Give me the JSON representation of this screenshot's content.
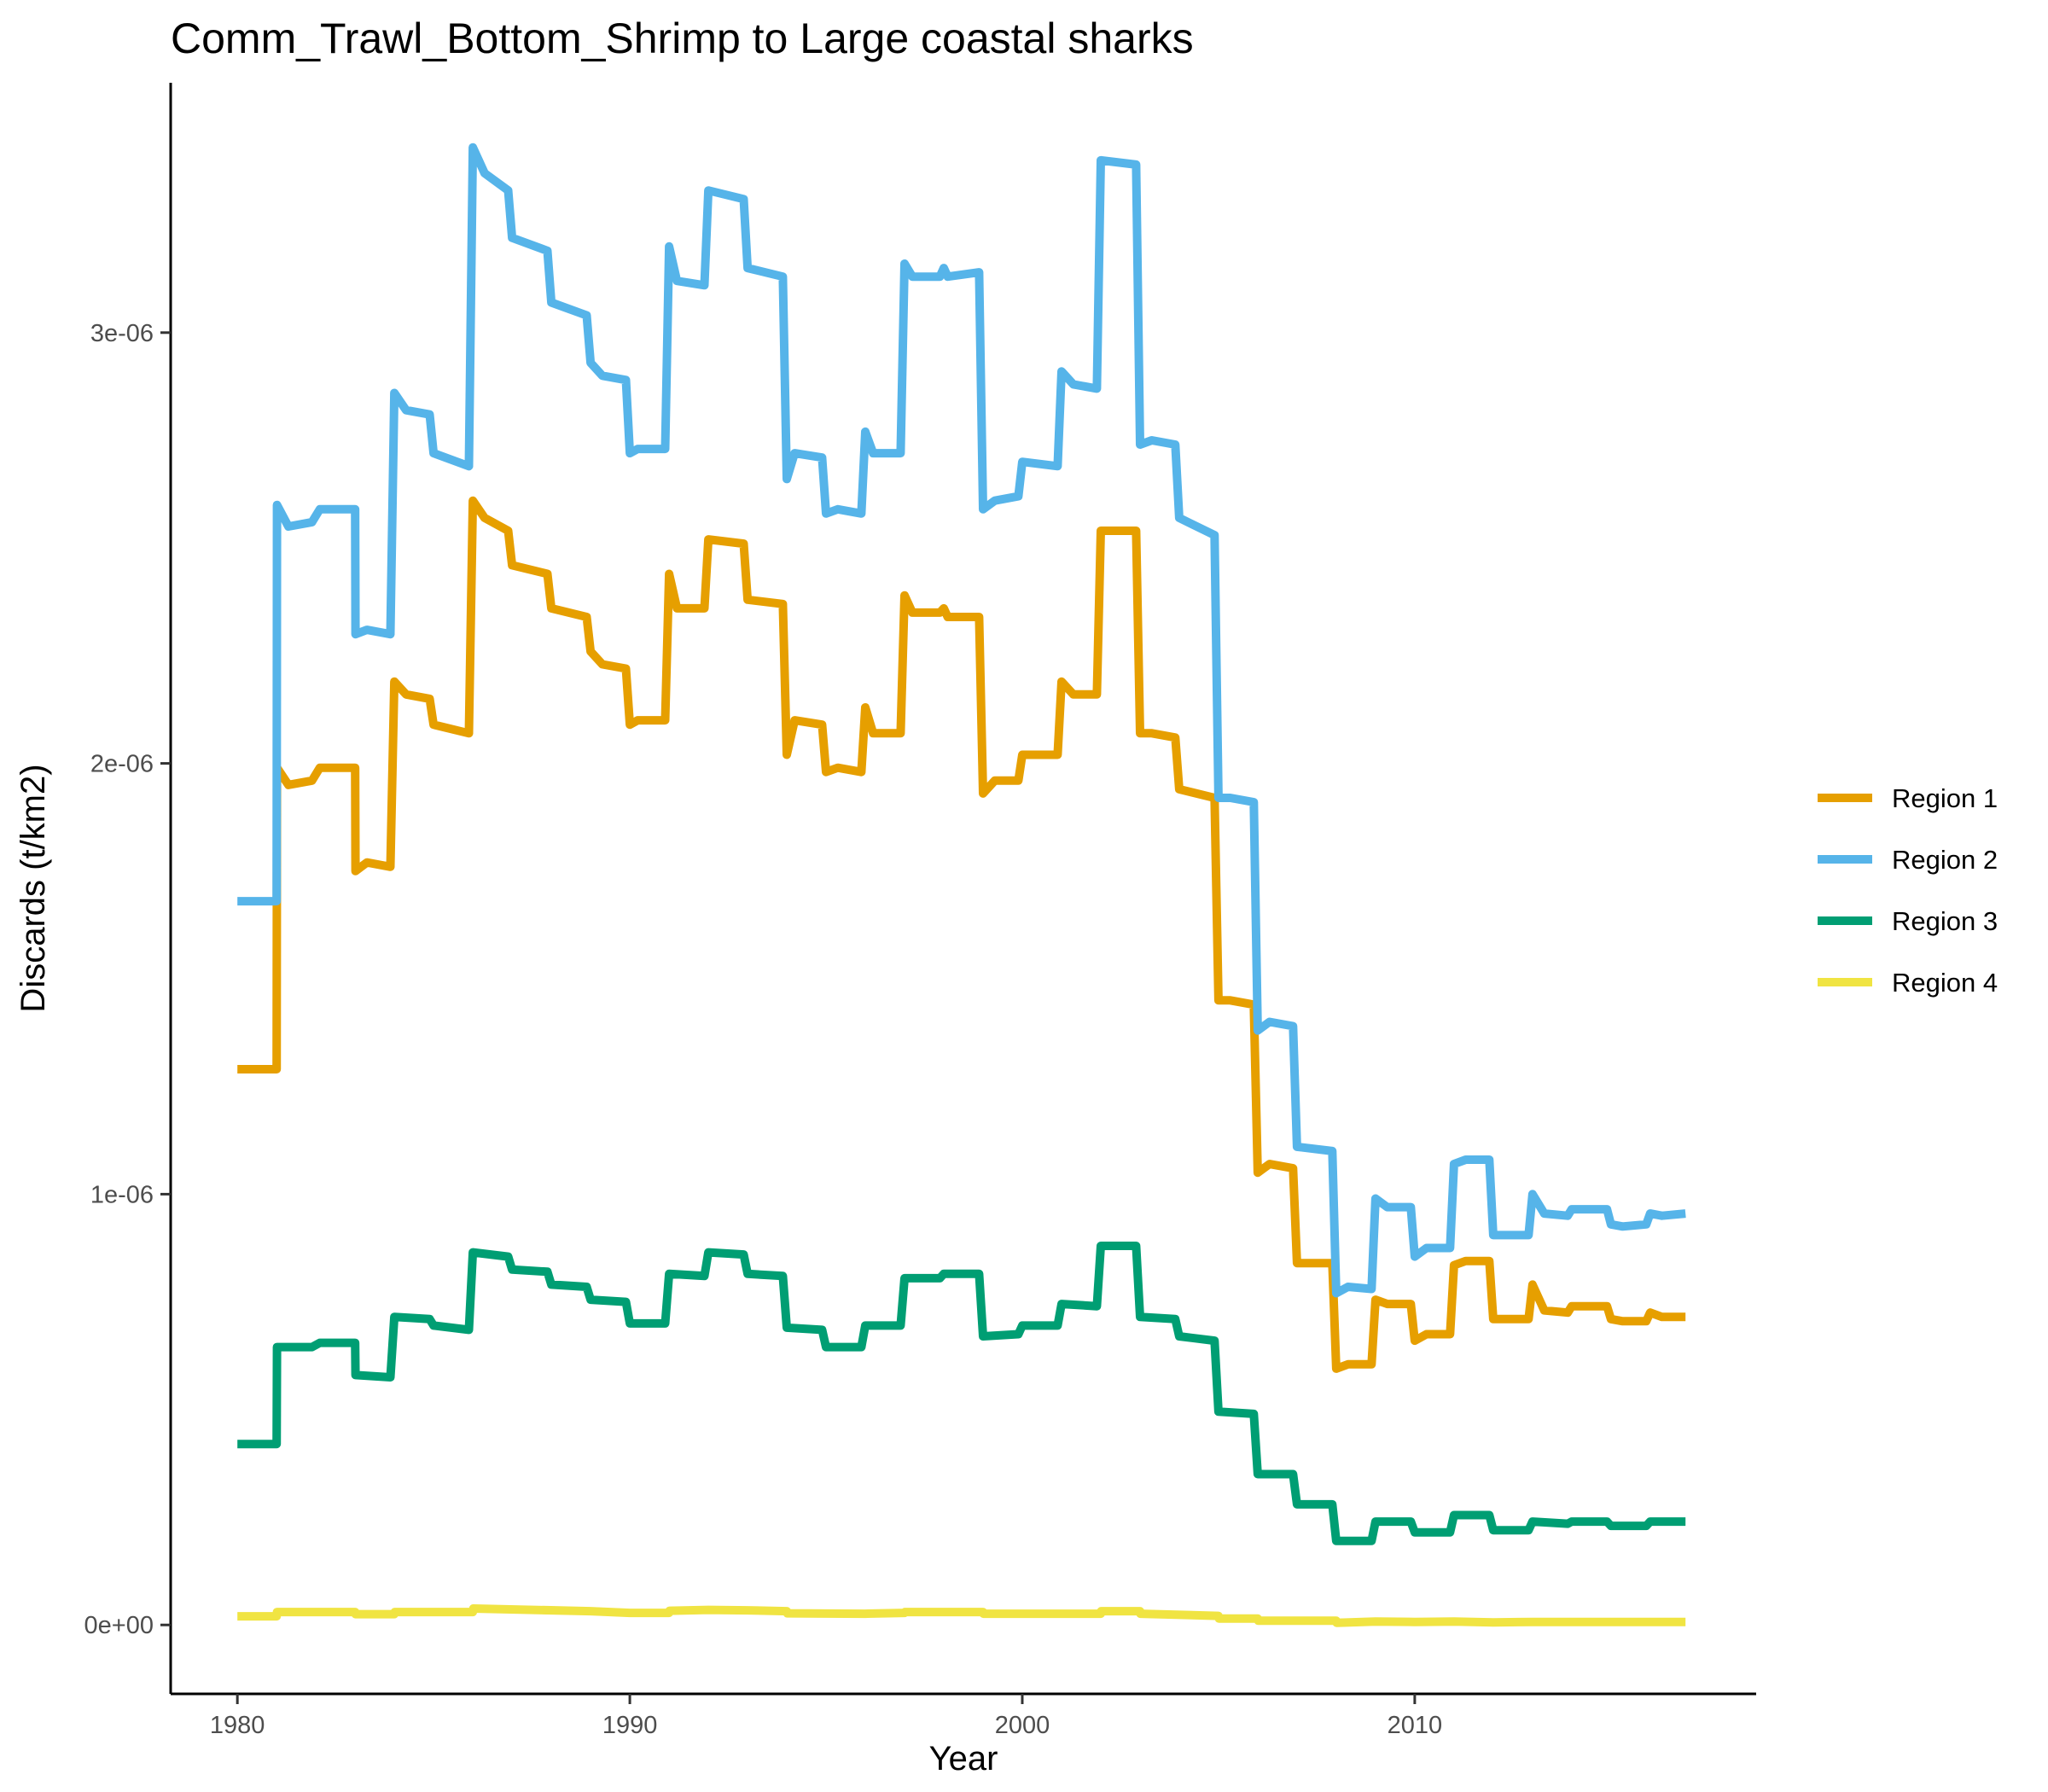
{
  "chart_data": {
    "type": "line",
    "title": "Comm_Trawl_Bottom_Shrimp to Large coastal sharks",
    "xlabel": "Year",
    "ylabel": "Discards (t/km2)",
    "xlim": [
      1978.3,
      2018.7
    ],
    "ylim": [
      -1.6e-07,
      3.58e-06
    ],
    "x_ticks": [
      1980,
      1990,
      2000,
      2010
    ],
    "x_tick_labels": [
      "1980",
      "1990",
      "2000",
      "2010"
    ],
    "y_ticks": [
      0,
      1e-06,
      2e-06,
      3e-06
    ],
    "y_tick_labels": [
      "0e+00",
      "1e-06",
      "2e-06",
      "3e-06"
    ],
    "grid": false,
    "legend_position": "right",
    "series": [
      {
        "name": "Region 1",
        "color": "#E69F00",
        "x": [
          1980,
          1981,
          1981.01,
          1981.3,
          1981.9,
          1982.1,
          1983,
          1983.01,
          1983.3,
          1983.9,
          1984,
          1984.3,
          1984.9,
          1985,
          1985.9,
          1986,
          1986.3,
          1986.9,
          1987,
          1987.9,
          1988,
          1988.9,
          1989,
          1989.3,
          1989.9,
          1990,
          1990.2,
          1990.9,
          1991,
          1991.2,
          1991.9,
          1992,
          1992.9,
          1993,
          1993.9,
          1994,
          1994.2,
          1994.9,
          1995,
          1995.3,
          1995.9,
          1996,
          1996.2,
          1996.9,
          1997,
          1997.2,
          1997.9,
          1998,
          1998.1,
          1998.9,
          1999,
          1999.3,
          1999.9,
          2000,
          2000.9,
          2001,
          2001.3,
          2001.9,
          2002,
          2002.9,
          2003,
          2003.3,
          2003.9,
          2004,
          2004.9,
          2005,
          2005.3,
          2005.9,
          2006,
          2006.3,
          2006.9,
          2007,
          2007.9,
          2008,
          2008.3,
          2008.9,
          2009,
          2009.3,
          2009.9,
          2010,
          2010.3,
          2010.9,
          2011,
          2011.3,
          2011.9,
          2012,
          2012.9,
          2013,
          2013.3,
          2013.9,
          2014,
          2014.9,
          2015,
          2015.3,
          2015.9,
          2016,
          2016.3,
          2016.9
        ],
        "y": [
          1.29e-06,
          1.29e-06,
          1.99e-06,
          1.95e-06,
          1.96e-06,
          1.99e-06,
          1.99e-06,
          1.75e-06,
          1.77e-06,
          1.76e-06,
          2.19e-06,
          2.16e-06,
          2.15e-06,
          2.09e-06,
          2.07e-06,
          2.61e-06,
          2.57e-06,
          2.54e-06,
          2.46e-06,
          2.44e-06,
          2.36e-06,
          2.34e-06,
          2.26e-06,
          2.23e-06,
          2.22e-06,
          2.09e-06,
          2.1e-06,
          2.1e-06,
          2.44e-06,
          2.36e-06,
          2.36e-06,
          2.52e-06,
          2.51e-06,
          2.38e-06,
          2.37e-06,
          2.02e-06,
          2.1e-06,
          2.09e-06,
          1.98e-06,
          1.99e-06,
          1.98e-06,
          2.13e-06,
          2.07e-06,
          2.07e-06,
          2.39e-06,
          2.35e-06,
          2.35e-06,
          2.36e-06,
          2.34e-06,
          2.34e-06,
          1.93e-06,
          1.96e-06,
          1.96e-06,
          2.02e-06,
          2.02e-06,
          2.19e-06,
          2.16e-06,
          2.16e-06,
          2.54e-06,
          2.54e-06,
          2.07e-06,
          2.07e-06,
          2.06e-06,
          1.94e-06,
          1.92e-06,
          1.45e-06,
          1.45e-06,
          1.44e-06,
          1.05e-06,
          1.07e-06,
          1.06e-06,
          8.4e-07,
          8.4e-07,
          5.95e-07,
          6.05e-07,
          6.05e-07,
          7.55e-07,
          7.45e-07,
          7.45e-07,
          6.6e-07,
          6.75e-07,
          6.75e-07,
          8.35e-07,
          8.45e-07,
          8.45e-07,
          7.1e-07,
          7.1e-07,
          7.9e-07,
          7.3e-07,
          7.25e-07,
          7.4e-07,
          7.4e-07,
          7.1e-07,
          7.05e-07,
          7.05e-07,
          7.25e-07,
          7.15e-07,
          7.15e-07
        ]
      },
      {
        "name": "Region 2",
        "color": "#56B4E9",
        "x": [
          1980,
          1981,
          1981.01,
          1981.3,
          1981.9,
          1982.1,
          1983,
          1983.01,
          1983.3,
          1983.9,
          1984,
          1984.3,
          1984.9,
          1985,
          1985.9,
          1986,
          1986.3,
          1986.9,
          1987,
          1987.9,
          1988,
          1988.9,
          1989,
          1989.3,
          1989.9,
          1990,
          1990.2,
          1990.9,
          1991,
          1991.2,
          1991.9,
          1992,
          1992.9,
          1993,
          1993.9,
          1994,
          1994.2,
          1994.9,
          1995,
          1995.3,
          1995.9,
          1996,
          1996.2,
          1996.9,
          1997,
          1997.2,
          1997.9,
          1998,
          1998.1,
          1998.9,
          1999,
          1999.3,
          1999.9,
          2000,
          2000.9,
          2001,
          2001.3,
          2001.9,
          2002,
          2002.9,
          2003,
          2003.3,
          2003.9,
          2004,
          2004.9,
          2005,
          2005.3,
          2005.9,
          2006,
          2006.3,
          2006.9,
          2007,
          2007.9,
          2008,
          2008.3,
          2008.9,
          2009,
          2009.3,
          2009.9,
          2010,
          2010.3,
          2010.9,
          2011,
          2011.3,
          2011.9,
          2012,
          2012.9,
          2013,
          2013.3,
          2013.9,
          2014,
          2014.9,
          2015,
          2015.3,
          2015.9,
          2016,
          2016.3,
          2016.9
        ],
        "y": [
          1.68e-06,
          1.68e-06,
          2.6e-06,
          2.55e-06,
          2.56e-06,
          2.59e-06,
          2.59e-06,
          2.3e-06,
          2.31e-06,
          2.3e-06,
          2.86e-06,
          2.82e-06,
          2.81e-06,
          2.72e-06,
          2.69e-06,
          3.43e-06,
          3.37e-06,
          3.33e-06,
          3.22e-06,
          3.19e-06,
          3.07e-06,
          3.04e-06,
          2.93e-06,
          2.9e-06,
          2.89e-06,
          2.72e-06,
          2.73e-06,
          2.73e-06,
          3.2e-06,
          3.12e-06,
          3.11e-06,
          3.33e-06,
          3.31e-06,
          3.15e-06,
          3.13e-06,
          2.66e-06,
          2.72e-06,
          2.71e-06,
          2.58e-06,
          2.59e-06,
          2.58e-06,
          2.77e-06,
          2.72e-06,
          2.72e-06,
          3.16e-06,
          3.13e-06,
          3.13e-06,
          3.15e-06,
          3.13e-06,
          3.14e-06,
          2.59e-06,
          2.61e-06,
          2.62e-06,
          2.7e-06,
          2.69e-06,
          2.91e-06,
          2.88e-06,
          2.87e-06,
          3.4e-06,
          3.39e-06,
          2.74e-06,
          2.75e-06,
          2.74e-06,
          2.57e-06,
          2.53e-06,
          1.92e-06,
          1.92e-06,
          1.91e-06,
          1.38e-06,
          1.4e-06,
          1.39e-06,
          1.11e-06,
          1.1e-06,
          7.7e-07,
          7.85e-07,
          7.8e-07,
          9.9e-07,
          9.7e-07,
          9.7e-07,
          8.55e-07,
          8.75e-07,
          8.75e-07,
          1.07e-06,
          1.08e-06,
          1.08e-06,
          9.05e-07,
          9.05e-07,
          1e-06,
          9.55e-07,
          9.5e-07,
          9.65e-07,
          9.65e-07,
          9.3e-07,
          9.25e-07,
          9.3e-07,
          9.55e-07,
          9.5e-07,
          9.55e-07
        ]
      },
      {
        "name": "Region 3",
        "color": "#009E73",
        "x": [
          1980,
          1981,
          1981.01,
          1981.9,
          1982.1,
          1983,
          1983.01,
          1983.9,
          1984,
          1984.9,
          1985,
          1985.9,
          1986,
          1986.9,
          1987,
          1987.9,
          1988,
          1988.9,
          1989,
          1989.9,
          1990,
          1990.9,
          1991,
          1991.9,
          1992,
          1992.9,
          1993,
          1993.9,
          1994,
          1994.9,
          1995,
          1995.9,
          1996,
          1996.9,
          1997,
          1997.9,
          1998,
          1998.9,
          1999,
          1999.9,
          2000,
          2000.9,
          2001,
          2001.9,
          2002,
          2002.9,
          2003,
          2003.9,
          2004,
          2004.9,
          2005,
          2005.9,
          2006,
          2006.9,
          2007,
          2007.9,
          2008,
          2008.9,
          2009,
          2009.9,
          2010,
          2010.9,
          2011,
          2011.9,
          2012,
          2012.9,
          2013,
          2013.9,
          2014,
          2014.9,
          2015,
          2015.9,
          2016,
          2016.9
        ],
        "y": [
          4.2e-07,
          4.2e-07,
          6.45e-07,
          6.45e-07,
          6.55e-07,
          6.55e-07,
          5.8e-07,
          5.75e-07,
          7.15e-07,
          7.1e-07,
          6.95e-07,
          6.85e-07,
          8.65e-07,
          8.55e-07,
          8.25e-07,
          8.2e-07,
          7.9e-07,
          7.85e-07,
          7.55e-07,
          7.5e-07,
          7e-07,
          7e-07,
          8.15e-07,
          8.1e-07,
          8.65e-07,
          8.6e-07,
          8.15e-07,
          8.1e-07,
          6.9e-07,
          6.85e-07,
          6.45e-07,
          6.45e-07,
          6.95e-07,
          6.95e-07,
          8.05e-07,
          8.05e-07,
          8.15e-07,
          8.15e-07,
          6.7e-07,
          6.75e-07,
          6.95e-07,
          6.95e-07,
          7.45e-07,
          7.4e-07,
          8.8e-07,
          8.8e-07,
          7.15e-07,
          7.1e-07,
          6.7e-07,
          6.6e-07,
          4.95e-07,
          4.9e-07,
          3.5e-07,
          3.5e-07,
          2.8e-07,
          2.8e-07,
          1.95e-07,
          1.95e-07,
          2.4e-07,
          2.4e-07,
          2.15e-07,
          2.15e-07,
          2.55e-07,
          2.55e-07,
          2.2e-07,
          2.2e-07,
          2.4e-07,
          2.35e-07,
          2.4e-07,
          2.4e-07,
          2.3e-07,
          2.3e-07,
          2.4e-07,
          2.4e-07
        ]
      },
      {
        "name": "Region 4",
        "color": "#F0E442",
        "x": [
          1980,
          1981,
          1981.01,
          1983,
          1983.01,
          1984,
          1984.01,
          1986,
          1986.01,
          1989,
          1990,
          1991,
          1991.01,
          1992,
          1993,
          1994,
          1994.01,
          1996,
          1997,
          1997.01,
          1999,
          1999.01,
          2002,
          2002.01,
          2003,
          2003.01,
          2005,
          2005.01,
          2006,
          2006.01,
          2008,
          2008.01,
          2009,
          2010,
          2011,
          2012,
          2013,
          2016.9
        ],
        "y": [
          2e-08,
          2e-08,
          3e-08,
          3e-08,
          2.5e-08,
          2.5e-08,
          3e-08,
          3e-08,
          3.8e-08,
          3.2e-08,
          2.8e-08,
          2.8e-08,
          3.3e-08,
          3.5e-08,
          3.4e-08,
          3.2e-08,
          2.7e-08,
          2.6e-08,
          2.8e-08,
          3e-08,
          3e-08,
          2.6e-08,
          2.6e-08,
          3.2e-08,
          3.2e-08,
          2.6e-08,
          2.1e-08,
          1.5e-08,
          1.5e-08,
          1e-08,
          1e-08,
          5e-09,
          8e-09,
          7e-09,
          8e-09,
          6e-09,
          7e-09,
          7e-09
        ]
      }
    ]
  }
}
